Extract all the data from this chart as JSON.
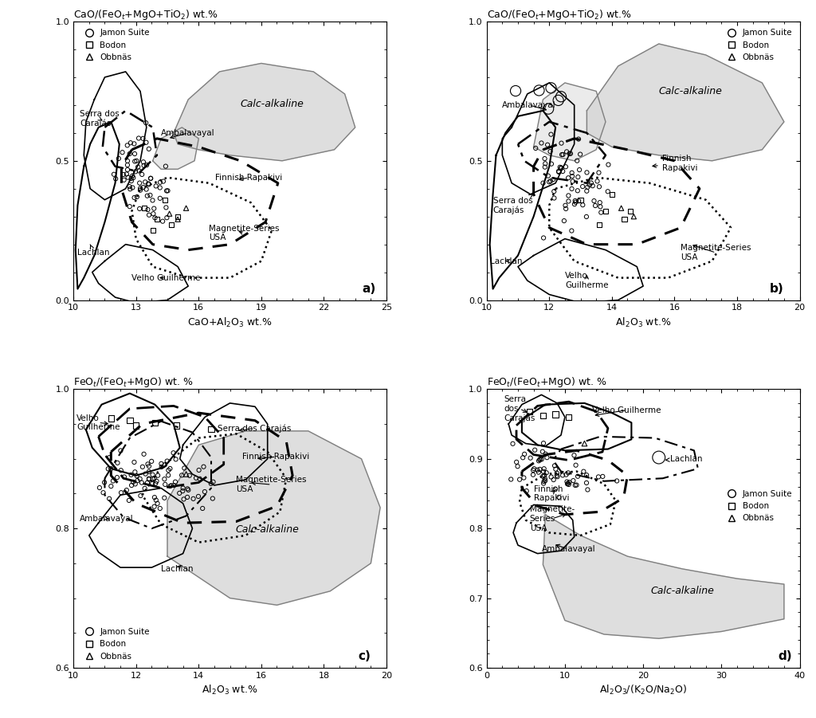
{
  "fig_width": 10.24,
  "fig_height": 9.01,
  "panels": [
    {
      "label": "a)",
      "title": "CaO/(FeO$_t$+MgO+TiO$_2$) wt.%",
      "xlabel": "CaO+Al$_2$O$_3$ wt.%",
      "xlim": [
        10,
        25
      ],
      "ylim": [
        0,
        1.0
      ],
      "xticks": [
        10,
        13,
        16,
        19,
        22,
        25
      ],
      "yticks": [
        0,
        0.5,
        1.0
      ]
    },
    {
      "label": "b)",
      "title": "CaO/(FeO$_t$+MgO+TiO$_2$) wt.%",
      "xlabel": "Al$_2$O$_3$ wt.%",
      "xlim": [
        10,
        20
      ],
      "ylim": [
        0,
        1.0
      ],
      "xticks": [
        10,
        12,
        14,
        16,
        18,
        20
      ],
      "yticks": [
        0,
        0.5,
        1.0
      ]
    },
    {
      "label": "c)",
      "title": "FeO$_t$/(FeO$_t$+MgO) wt. %",
      "xlabel": "Al$_2$O$_3$ wt.%",
      "xlim": [
        10,
        20
      ],
      "ylim": [
        0.6,
        1.0
      ],
      "xticks": [
        10,
        12,
        14,
        16,
        18,
        20
      ],
      "yticks": [
        0.6,
        0.8,
        1.0
      ]
    },
    {
      "label": "d)",
      "title": "FeO$_t$/(FeO$_t$+MgO) wt. %",
      "xlabel": "Al$_2$O$_3$/(K$_2$O/Na$_2$O)",
      "xlim": [
        0,
        40
      ],
      "ylim": [
        0.6,
        1.0
      ],
      "xticks": [
        0,
        10,
        20,
        30,
        40
      ],
      "yticks": [
        0.6,
        0.7,
        0.8,
        0.9,
        1.0
      ]
    }
  ]
}
